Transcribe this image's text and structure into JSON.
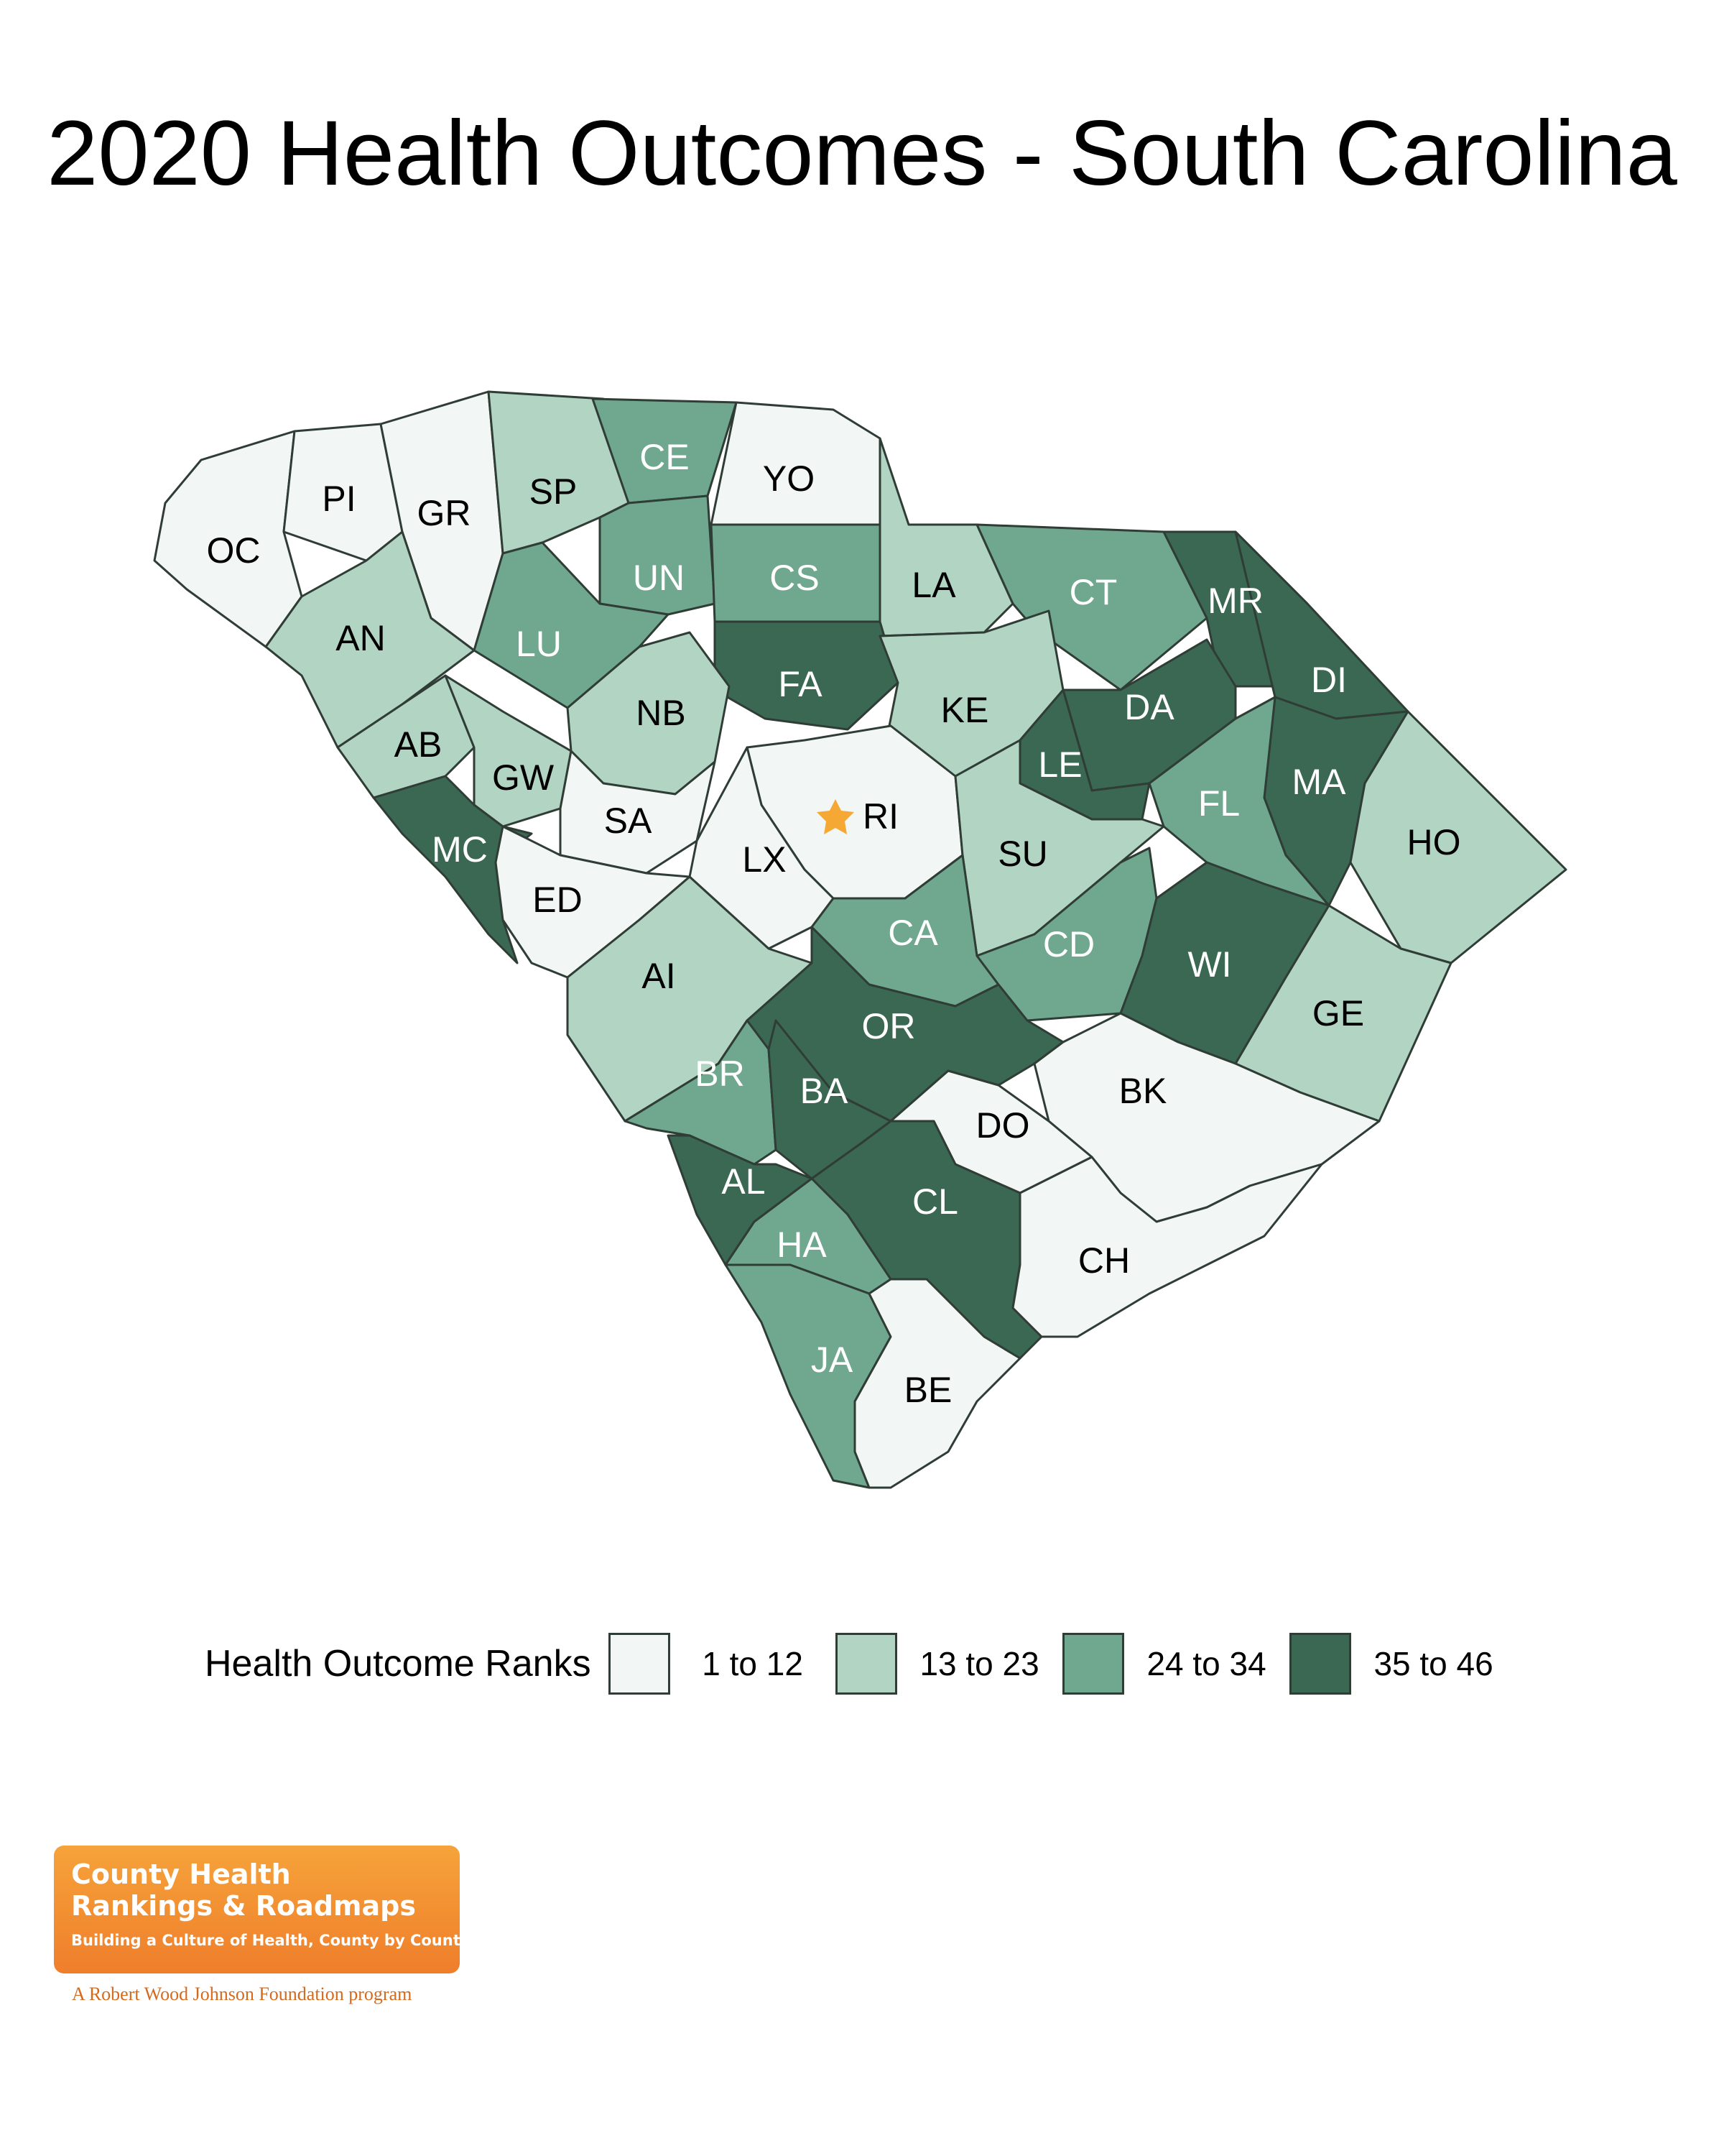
{
  "title": "2020 Health Outcomes - South Carolina",
  "colors": {
    "rank_1_12": "#f2f6f4",
    "rank_13_23": "#b2d4c3",
    "rank_24_34": "#6fa88f",
    "rank_35_46": "#3a6852",
    "border": "#2f3d36",
    "capital_star": "#f5a833",
    "logo_orange": "#ef7e2b"
  },
  "legend": {
    "title": "Health Outcome Ranks",
    "items": [
      {
        "label": "1 to 12",
        "color": "#f2f6f4"
      },
      {
        "label": "13 to 23",
        "color": "#b2d4c3"
      },
      {
        "label": "24 to 34",
        "color": "#6fa88f"
      },
      {
        "label": "35 to 46",
        "color": "#3a6852"
      }
    ]
  },
  "counties": [
    {
      "code": "OC",
      "rank_group": "1 to 12"
    },
    {
      "code": "PI",
      "rank_group": "1 to 12"
    },
    {
      "code": "GR",
      "rank_group": "1 to 12"
    },
    {
      "code": "SP",
      "rank_group": "13 to 23"
    },
    {
      "code": "CE",
      "rank_group": "24 to 34"
    },
    {
      "code": "YO",
      "rank_group": "1 to 12"
    },
    {
      "code": "AN",
      "rank_group": "13 to 23"
    },
    {
      "code": "UN",
      "rank_group": "24 to 34"
    },
    {
      "code": "CS",
      "rank_group": "24 to 34"
    },
    {
      "code": "LA",
      "rank_group": "13 to 23"
    },
    {
      "code": "CT",
      "rank_group": "24 to 34"
    },
    {
      "code": "MR",
      "rank_group": "35 to 46"
    },
    {
      "code": "LU",
      "rank_group": "24 to 34"
    },
    {
      "code": "DI",
      "rank_group": "35 to 46"
    },
    {
      "code": "FA",
      "rank_group": "35 to 46"
    },
    {
      "code": "NB",
      "rank_group": "13 to 23"
    },
    {
      "code": "KE",
      "rank_group": "13 to 23"
    },
    {
      "code": "DA",
      "rank_group": "35 to 46"
    },
    {
      "code": "AB",
      "rank_group": "13 to 23"
    },
    {
      "code": "LE",
      "rank_group": "35 to 46"
    },
    {
      "code": "GW",
      "rank_group": "13 to 23"
    },
    {
      "code": "MA",
      "rank_group": "35 to 46"
    },
    {
      "code": "SA",
      "rank_group": "1 to 12"
    },
    {
      "code": "RI",
      "rank_group": "1 to 12"
    },
    {
      "code": "FL",
      "rank_group": "24 to 34"
    },
    {
      "code": "HO",
      "rank_group": "13 to 23"
    },
    {
      "code": "MC",
      "rank_group": "35 to 46"
    },
    {
      "code": "LX",
      "rank_group": "1 to 12"
    },
    {
      "code": "SU",
      "rank_group": "13 to 23"
    },
    {
      "code": "ED",
      "rank_group": "1 to 12"
    },
    {
      "code": "CA",
      "rank_group": "24 to 34"
    },
    {
      "code": "CD",
      "rank_group": "24 to 34"
    },
    {
      "code": "AI",
      "rank_group": "13 to 23"
    },
    {
      "code": "WI",
      "rank_group": "35 to 46"
    },
    {
      "code": "OR",
      "rank_group": "35 to 46"
    },
    {
      "code": "GE",
      "rank_group": "13 to 23"
    },
    {
      "code": "BR",
      "rank_group": "24 to 34"
    },
    {
      "code": "BK",
      "rank_group": "1 to 12"
    },
    {
      "code": "BA",
      "rank_group": "35 to 46"
    },
    {
      "code": "DO",
      "rank_group": "1 to 12"
    },
    {
      "code": "AL",
      "rank_group": "35 to 46"
    },
    {
      "code": "CL",
      "rank_group": "35 to 46"
    },
    {
      "code": "HA",
      "rank_group": "24 to 34"
    },
    {
      "code": "CH",
      "rank_group": "1 to 12"
    },
    {
      "code": "JA",
      "rank_group": "24 to 34"
    },
    {
      "code": "BE",
      "rank_group": "1 to 12"
    }
  ],
  "capital": {
    "county": "RI",
    "marker": "star-icon"
  },
  "logo": {
    "line1": "County Health",
    "line2": "Rankings & Roadmaps",
    "tagline": "Building a Culture of Health, County by County",
    "program": "A Robert Wood Johnson Foundation program"
  }
}
